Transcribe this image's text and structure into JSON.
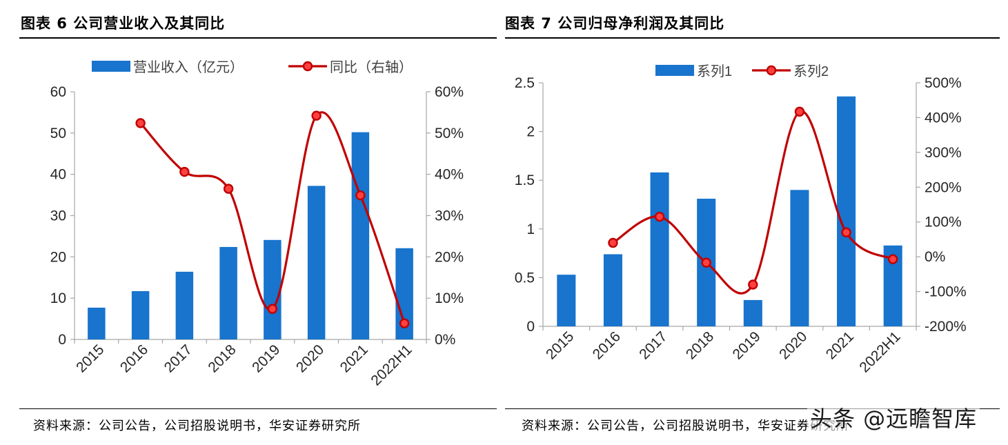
{
  "left": {
    "title": "图表 6   公司营业收入及其同比",
    "source": "资料来源：公司公告，公司招股说明书，华安证券研究所"
  },
  "right": {
    "title": "图表 7  公司归母净利润及其同比",
    "source": "资料来源：公司公告，公司招股说明书，华安证券研究所"
  },
  "watermark": "头条 @远瞻智库",
  "colors": {
    "bar": "#1874CD",
    "line": "#C00000",
    "marker_fill": "#FF4040",
    "axis": "#A6A6A6"
  },
  "chart_data": [
    {
      "type": "bar",
      "categories": [
        "2015",
        "2016",
        "2017",
        "2018",
        "2019",
        "2020",
        "2021",
        "2022H1"
      ],
      "series": [
        {
          "name": "营业收入（亿元）",
          "type": "bar",
          "axis": "left",
          "values": [
            7.7,
            11.7,
            16.4,
            22.4,
            24.1,
            37.2,
            50.2,
            22.1
          ]
        },
        {
          "name": "同比（右轴）",
          "type": "line",
          "axis": "right",
          "smooth": true,
          "values": [
            null,
            52.4,
            40.6,
            36.5,
            7.4,
            54.2,
            34.9,
            3.9
          ]
        }
      ],
      "ylim": [
        0,
        60
      ],
      "yticks": [
        0,
        10,
        20,
        30,
        40,
        50,
        60
      ],
      "y2lim": [
        0,
        60
      ],
      "y2ticks": [
        0,
        10,
        20,
        30,
        40,
        50,
        60
      ],
      "y2unit": "%",
      "legend": "top-center",
      "grid": false
    },
    {
      "type": "bar",
      "categories": [
        "2015",
        "2016",
        "2017",
        "2018",
        "2019",
        "2020",
        "2021",
        "2022H1"
      ],
      "series": [
        {
          "name": "系列1",
          "type": "bar",
          "axis": "left",
          "values": [
            0.53,
            0.74,
            1.58,
            1.31,
            0.27,
            1.4,
            2.36,
            0.83
          ]
        },
        {
          "name": "系列2",
          "type": "line",
          "axis": "right",
          "smooth": true,
          "values": [
            null,
            40,
            115,
            -17,
            -80,
            417,
            70,
            -7
          ]
        }
      ],
      "ylim": [
        0,
        2.5
      ],
      "yticks": [
        0,
        0.5,
        1,
        1.5,
        2,
        2.5
      ],
      "y2lim": [
        -200,
        500
      ],
      "y2ticks": [
        -200,
        -100,
        0,
        100,
        200,
        300,
        400,
        500
      ],
      "y2unit": "%",
      "legend": "top-center",
      "grid": false
    }
  ]
}
